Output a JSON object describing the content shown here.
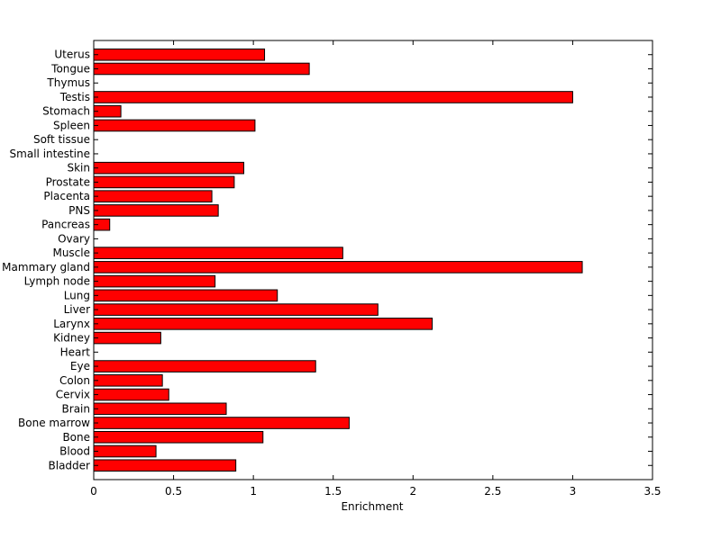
{
  "chart_data": {
    "type": "bar",
    "orientation": "horizontal",
    "title": "",
    "xlabel": "Enrichment",
    "ylabel": "",
    "xlim": [
      0,
      3.5
    ],
    "xticks": [
      "0",
      "0.5",
      "1",
      "1.5",
      "2",
      "2.5",
      "3",
      "3.5"
    ],
    "grid": false,
    "bar_color": "#ff0000",
    "categories": [
      "Bladder",
      "Blood",
      "Bone",
      "Bone marrow",
      "Brain",
      "Cervix",
      "Colon",
      "Eye",
      "Heart",
      "Kidney",
      "Larynx",
      "Liver",
      "Lung",
      "Lymph node",
      "Mammary gland",
      "Muscle",
      "Ovary",
      "Pancreas",
      "PNS",
      "Placenta",
      "Prostate",
      "Skin",
      "Small intestine",
      "Soft tissue",
      "Spleen",
      "Stomach",
      "Testis",
      "Thymus",
      "Tongue",
      "Uterus"
    ],
    "values": [
      0.89,
      0.39,
      1.06,
      1.6,
      0.83,
      0.47,
      0.43,
      1.39,
      0,
      0.42,
      2.12,
      1.78,
      1.15,
      0.76,
      3.06,
      1.56,
      0,
      0.1,
      0.78,
      0.74,
      0.88,
      0.94,
      0,
      0,
      1.01,
      0.17,
      3.0,
      0,
      1.35,
      1.07
    ]
  }
}
